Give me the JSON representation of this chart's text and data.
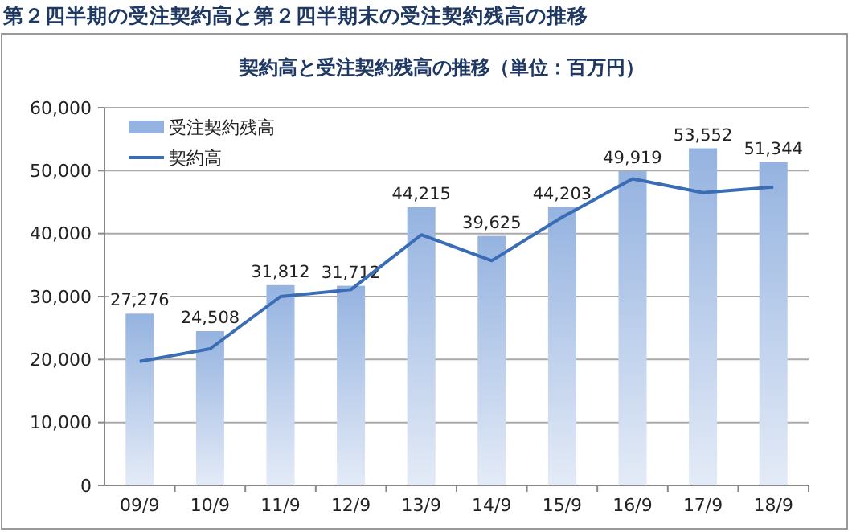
{
  "chart_data": {
    "type": "bar",
    "title": "第２四半期の受注契約高と第２四半期末の受注契約残高の推移",
    "subtitle": "契約高と受注契約残高の推移（単位：百万円）",
    "categories": [
      "09/9",
      "10/9",
      "11/9",
      "12/9",
      "13/9",
      "14/9",
      "15/9",
      "16/9",
      "17/9",
      "18/9"
    ],
    "series": [
      {
        "name": "受注契約残高",
        "color": "#95b3e0",
        "values": [
          27276,
          24508,
          31812,
          31712,
          44215,
          39625,
          44203,
          49919,
          53552,
          51344
        ],
        "value_labels": [
          "27,276",
          "24,508",
          "31,812",
          "31,712",
          "44,215",
          "39,625",
          "44,203",
          "49,919",
          "53,552",
          "51,344"
        ]
      },
      {
        "name": "契約高",
        "type": "line",
        "color": "#3a6db5",
        "values": [
          19700,
          21700,
          30000,
          31100,
          39800,
          35700,
          42600,
          48700,
          46500,
          47400
        ]
      }
    ],
    "ylim": [
      0,
      60000
    ],
    "yticks": [
      {
        "value": 0,
        "label": "0"
      },
      {
        "value": 10000,
        "label": "10,000"
      },
      {
        "value": 20000,
        "label": "20,000"
      },
      {
        "value": 30000,
        "label": "30,000"
      },
      {
        "value": 40000,
        "label": "40,000"
      },
      {
        "value": 50000,
        "label": "50,000"
      },
      {
        "value": 60000,
        "label": "60,000"
      }
    ],
    "grid": "y",
    "legend": "top left",
    "marker": "none",
    "line_style": "solid"
  }
}
